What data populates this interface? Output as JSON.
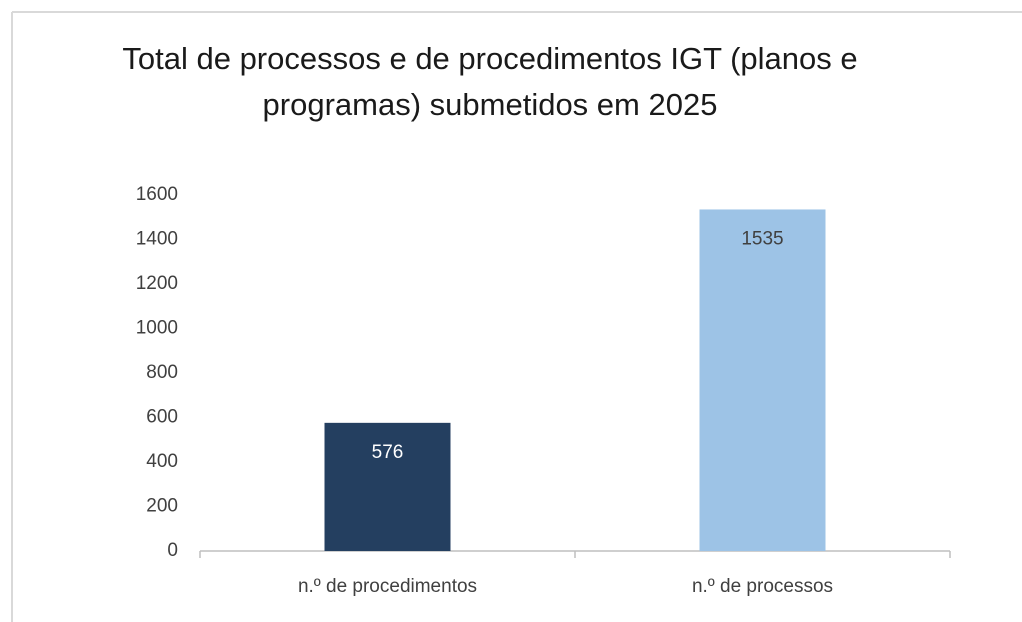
{
  "chart_data": {
    "type": "bar",
    "title": "Total de processos e de procedimentos IGT (planos e programas) submetidos em 2025",
    "categories": [
      "n.º de procedimentos",
      "n.º de processos"
    ],
    "values": [
      576,
      1535
    ],
    "colors": [
      "#243f60",
      "#9dc3e6"
    ],
    "ylim": [
      0,
      1600
    ],
    "yticks": [
      0,
      200,
      400,
      600,
      800,
      1000,
      1200,
      1400,
      1600
    ],
    "grid": false
  }
}
